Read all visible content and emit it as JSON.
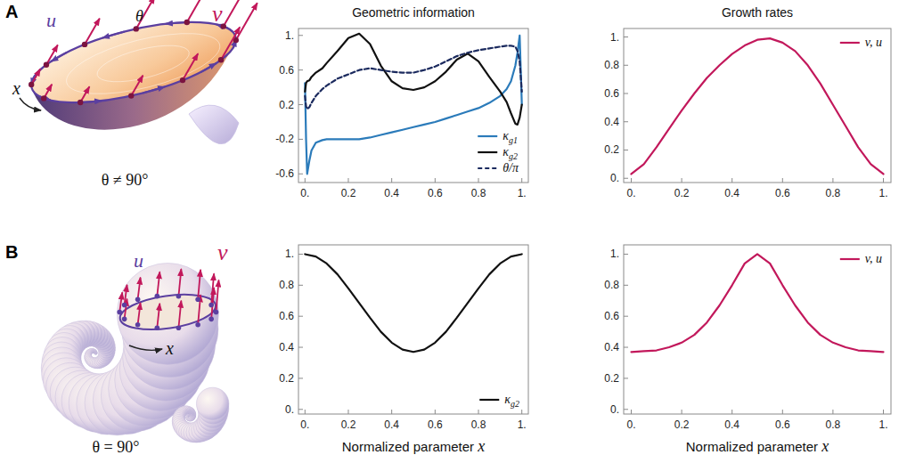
{
  "panel_letters": [
    "A",
    "B"
  ],
  "illustrations": [
    {
      "labels": [
        "u",
        "v",
        "θ",
        "x"
      ],
      "caption": "θ ≠ 90°"
    },
    {
      "labels": [
        "u",
        "v",
        "x"
      ],
      "caption": "θ = 90°"
    }
  ],
  "chart_data": [
    {
      "type": "line",
      "title": "Geometric information",
      "x": [
        0,
        0.005,
        0.01,
        0.02,
        0.03,
        0.05,
        0.08,
        0.1,
        0.15,
        0.2,
        0.25,
        0.3,
        0.35,
        0.4,
        0.45,
        0.5,
        0.55,
        0.6,
        0.65,
        0.7,
        0.75,
        0.8,
        0.85,
        0.9,
        0.93,
        0.95,
        0.97,
        0.98,
        0.99,
        1
      ],
      "series": [
        {
          "name": "κg1",
          "color": "#2b7bba",
          "line_style": "solid",
          "values": [
            0.45,
            -0.2,
            -0.6,
            -0.45,
            -0.33,
            -0.24,
            -0.21,
            -0.2,
            -0.2,
            -0.2,
            -0.2,
            -0.18,
            -0.15,
            -0.12,
            -0.09,
            -0.06,
            -0.03,
            0,
            0.04,
            0.08,
            0.12,
            0.16,
            0.22,
            0.3,
            0.38,
            0.47,
            0.65,
            0.8,
            1.0,
            0.2
          ]
        },
        {
          "name": "κg2",
          "color": "#111111",
          "line_style": "solid",
          "values": [
            0.35,
            0.45,
            0.47,
            0.48,
            0.52,
            0.57,
            0.62,
            0.68,
            0.82,
            0.97,
            1.02,
            0.9,
            0.65,
            0.47,
            0.39,
            0.37,
            0.4,
            0.47,
            0.58,
            0.72,
            0.79,
            0.7,
            0.52,
            0.35,
            0.23,
            0.1,
            -0.02,
            -0.03,
            0.05,
            0.2
          ]
        },
        {
          "name": "θ/π",
          "color": "#1b2a5e",
          "line_style": "dashed",
          "values": [
            0.3,
            0.18,
            0.15,
            0.17,
            0.22,
            0.3,
            0.38,
            0.42,
            0.5,
            0.55,
            0.6,
            0.62,
            0.6,
            0.58,
            0.57,
            0.57,
            0.6,
            0.64,
            0.7,
            0.76,
            0.8,
            0.83,
            0.85,
            0.87,
            0.88,
            0.88,
            0.87,
            0.82,
            0.7,
            0.35
          ]
        }
      ],
      "xlim": [
        -0.03,
        1.03
      ],
      "ylim": [
        -0.7,
        1.08
      ],
      "xticks": [
        {
          "value": 0,
          "label": "0."
        },
        0.2,
        0.4,
        0.6,
        0.8,
        {
          "value": 1,
          "label": "1."
        }
      ],
      "yticks": [
        -0.6,
        -0.2,
        0.2,
        0.6,
        {
          "value": 1,
          "label": "1."
        }
      ],
      "legend": "lower right"
    },
    {
      "type": "line",
      "title": "Growth rates",
      "x": [
        0,
        0.05,
        0.1,
        0.15,
        0.2,
        0.25,
        0.3,
        0.35,
        0.4,
        0.45,
        0.5,
        0.55,
        0.6,
        0.65,
        0.7,
        0.75,
        0.8,
        0.85,
        0.9,
        0.95,
        1
      ],
      "series": [
        {
          "name": "v, u",
          "color": "#c2185b",
          "line_style": "solid",
          "values": [
            0.03,
            0.1,
            0.22,
            0.35,
            0.48,
            0.6,
            0.71,
            0.8,
            0.88,
            0.94,
            0.98,
            0.99,
            0.96,
            0.9,
            0.8,
            0.67,
            0.52,
            0.37,
            0.22,
            0.1,
            0.03
          ]
        }
      ],
      "xlim": [
        -0.03,
        1.03
      ],
      "ylim": [
        -0.03,
        1.06
      ],
      "xticks": [
        {
          "value": 0,
          "label": "0."
        },
        0.2,
        0.4,
        0.6,
        0.8,
        {
          "value": 1,
          "label": "1."
        }
      ],
      "yticks": [
        {
          "value": 0,
          "label": "0."
        },
        0.2,
        0.4,
        0.6,
        0.8,
        {
          "value": 1,
          "label": "1."
        }
      ],
      "legend": "upper right"
    },
    {
      "type": "line",
      "x_label": "Normalized parameter x",
      "x": [
        0,
        0.05,
        0.1,
        0.15,
        0.2,
        0.25,
        0.3,
        0.35,
        0.4,
        0.45,
        0.5,
        0.55,
        0.6,
        0.65,
        0.7,
        0.75,
        0.8,
        0.85,
        0.9,
        0.95,
        1
      ],
      "series": [
        {
          "name": "κg2",
          "color": "#111111",
          "line_style": "solid",
          "values": [
            1,
            0.985,
            0.94,
            0.87,
            0.78,
            0.685,
            0.59,
            0.5,
            0.43,
            0.385,
            0.37,
            0.385,
            0.43,
            0.5,
            0.59,
            0.685,
            0.78,
            0.87,
            0.94,
            0.985,
            1
          ]
        }
      ],
      "xlim": [
        -0.03,
        1.03
      ],
      "ylim": [
        -0.03,
        1.06
      ],
      "xticks": [
        {
          "value": 0,
          "label": "0."
        },
        0.2,
        0.4,
        0.6,
        0.8,
        {
          "value": 1,
          "label": "1."
        }
      ],
      "yticks": [
        {
          "value": 0,
          "label": "0."
        },
        0.2,
        0.4,
        0.6,
        0.8,
        {
          "value": 1,
          "label": "1."
        }
      ],
      "legend": "lower right"
    },
    {
      "type": "line",
      "x_label": "Normalized parameter x",
      "x": [
        0,
        0.05,
        0.1,
        0.15,
        0.2,
        0.25,
        0.3,
        0.35,
        0.4,
        0.45,
        0.5,
        0.55,
        0.6,
        0.65,
        0.7,
        0.75,
        0.8,
        0.85,
        0.9,
        0.95,
        1
      ],
      "series": [
        {
          "name": "v, u",
          "color": "#c2185b",
          "line_style": "solid",
          "values": [
            0.37,
            0.375,
            0.38,
            0.4,
            0.43,
            0.48,
            0.56,
            0.67,
            0.8,
            0.94,
            1,
            0.94,
            0.8,
            0.67,
            0.56,
            0.48,
            0.43,
            0.4,
            0.38,
            0.375,
            0.37
          ]
        }
      ],
      "xlim": [
        -0.03,
        1.03
      ],
      "ylim": [
        -0.03,
        1.06
      ],
      "xticks": [
        {
          "value": 0,
          "label": "0."
        },
        0.2,
        0.4,
        0.6,
        0.8,
        {
          "value": 1,
          "label": "1."
        }
      ],
      "yticks": [
        {
          "value": 0,
          "label": "0."
        },
        0.2,
        0.4,
        0.6,
        0.8,
        {
          "value": 1,
          "label": "1."
        }
      ],
      "legend": "upper right"
    }
  ]
}
